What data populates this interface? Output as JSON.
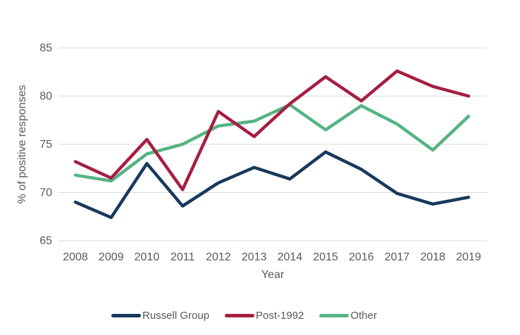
{
  "chart_data": {
    "type": "line",
    "title": "",
    "xlabel": "Year",
    "ylabel": "% of positive responses",
    "categories": [
      "2008",
      "2009",
      "2010",
      "2011",
      "2012",
      "2013",
      "2014",
      "2015",
      "2016",
      "2017",
      "2018",
      "2019"
    ],
    "ylim": [
      65,
      85
    ],
    "yticks": [
      65,
      70,
      75,
      80,
      85
    ],
    "grid": "horizontal",
    "legend_position": "bottom",
    "series": [
      {
        "name": "Russell Group",
        "color": "#17395c",
        "values": [
          69.0,
          67.4,
          73.0,
          68.6,
          71.0,
          72.6,
          71.4,
          74.2,
          72.4,
          69.9,
          68.8,
          69.5
        ]
      },
      {
        "name": "Post-1992",
        "color": "#a61e42",
        "values": [
          73.2,
          71.5,
          75.5,
          70.3,
          78.4,
          75.8,
          79.2,
          82.0,
          79.5,
          82.6,
          81.0,
          80.0
        ]
      },
      {
        "name": "Other",
        "color": "#54b483",
        "values": [
          71.8,
          71.2,
          74.0,
          75.0,
          76.9,
          77.4,
          79.1,
          76.5,
          79.0,
          77.1,
          74.4,
          77.9
        ]
      }
    ],
    "colors": {
      "axis_text": "#595959",
      "gridline": "#d9d9d9",
      "background": "#ffffff"
    }
  }
}
